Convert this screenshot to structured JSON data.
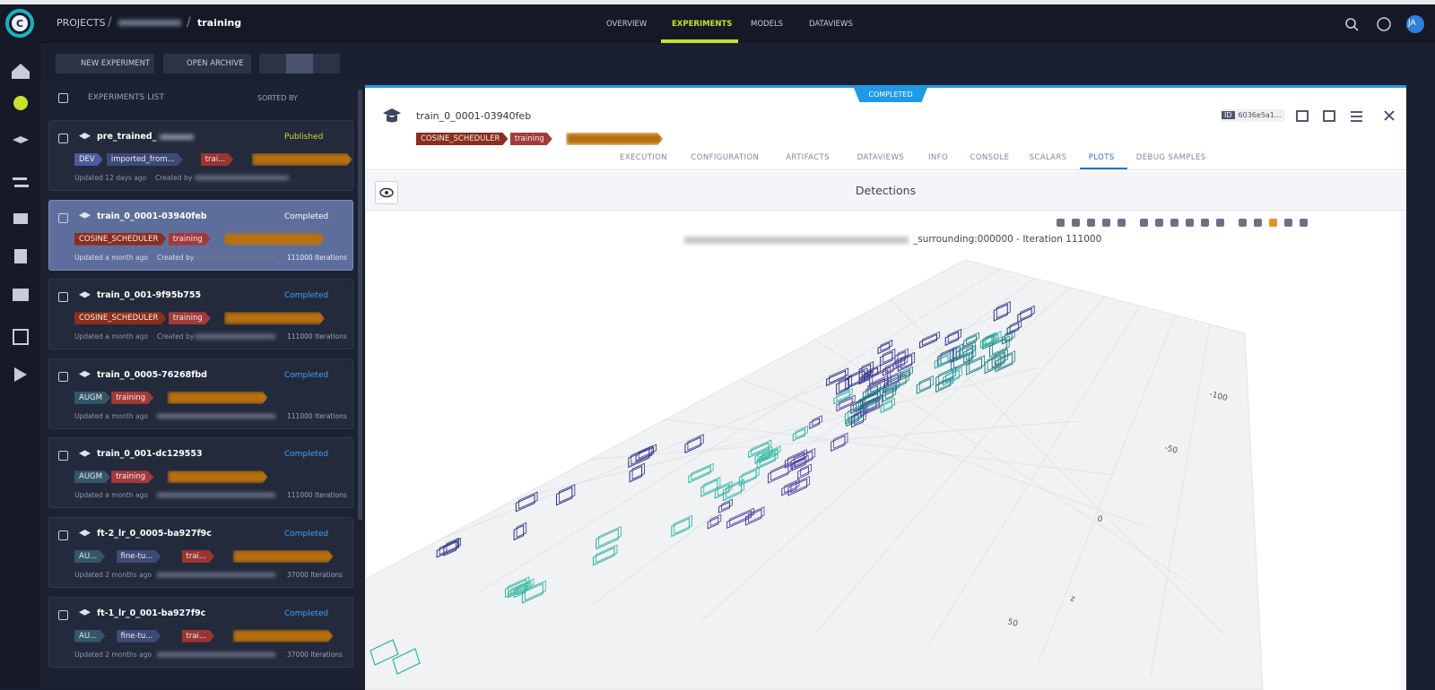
{
  "header": {
    "projects": "PROJECTS",
    "separator": "/",
    "project": "training",
    "tabs": [
      "OVERVIEW",
      "EXPERIMENTS",
      "MODELS",
      "DATAVIEWS"
    ],
    "active_tab": 1,
    "avatar": "JA"
  },
  "toolbar": {
    "new_experiment": "NEW EXPERIMENT",
    "open_archive": "OPEN ARCHIVE"
  },
  "list": {
    "title": "EXPERIMENTS LIST",
    "sorted_by": "SORTED BY",
    "selected_index": 1,
    "items": [
      {
        "name": "pre_trained_",
        "tags": [
          {
            "text": "DEV",
            "color": "#4b5a9c"
          },
          {
            "text": "imported_from...",
            "color": "#3d4a75"
          },
          {
            "text": "trai...",
            "color": "#9c3434"
          }
        ],
        "status": "Published",
        "updated": "Updated 12 days ago",
        "created_by": "Created by"
      },
      {
        "name": "train_0_0001-03940feb",
        "tags": [
          {
            "text": "COSINE_SCHEDULER",
            "color": "#8a2e1e"
          },
          {
            "text": "training",
            "color": "#a33a3a"
          }
        ],
        "status": "Completed",
        "updated": "Updated a month ago",
        "created_by": "Created by",
        "iterations": "111000 Iterations"
      },
      {
        "name": "train_0_001-9f95b755",
        "tags": [
          {
            "text": "COSINE_SCHEDULER",
            "color": "#8a2e1e"
          },
          {
            "text": "training",
            "color": "#a33a3a"
          }
        ],
        "status": "Completed",
        "updated": "Updated a month ago",
        "created_by": "Created by",
        "iterations": "111000 Iterations"
      },
      {
        "name": "train_0_0005-76268fbd",
        "tags": [
          {
            "text": "AUGM",
            "color": "#34566a"
          },
          {
            "text": "training",
            "color": "#a33a3a"
          }
        ],
        "status": "Completed",
        "updated": "Updated a month ago",
        "iterations": "111000 Iterations"
      },
      {
        "name": "train_0_001-dc129553",
        "tags": [
          {
            "text": "AUGM",
            "color": "#34566a"
          },
          {
            "text": "training",
            "color": "#a33a3a"
          }
        ],
        "status": "Completed",
        "updated": "Updated a month ago",
        "iterations": "111000 Iterations"
      },
      {
        "name": "ft-2_lr_0_0005-ba927f9c",
        "tags": [
          {
            "text": "AU...",
            "color": "#34566a"
          },
          {
            "text": "fine-tu...",
            "color": "#3d4a75"
          },
          {
            "text": "trai...",
            "color": "#9c3434"
          }
        ],
        "status": "Completed",
        "updated": "Updated 2 months ago",
        "iterations": "37000 Iterations"
      },
      {
        "name": "ft-1_lr_0_001-ba927f9c",
        "tags": [
          {
            "text": "AU...",
            "color": "#34566a"
          },
          {
            "text": "fine-tu...",
            "color": "#3d4a75"
          },
          {
            "text": "trai...",
            "color": "#9c3434"
          }
        ],
        "status": "Completed",
        "updated": "Updated 2 months ago",
        "iterations": "37000 Iterations"
      }
    ]
  },
  "details": {
    "status_banner": "COMPLETED",
    "name": "train_0_0001-03940feb",
    "tags": [
      {
        "text": "COSINE_SCHEDULER",
        "color": "#8a2e1e"
      },
      {
        "text": "training",
        "color": "#a33a3a"
      }
    ],
    "id_label": "ID",
    "id": "6036e5a1...",
    "tabs": [
      "EXECUTION",
      "CONFIGURATION",
      "ARTIFACTS",
      "DATAVIEWS",
      "INFO",
      "CONSOLE",
      "SCALARS",
      "PLOTS",
      "DEBUG SAMPLES"
    ],
    "active_tab": 7,
    "plot_title": "Detections",
    "plot_subtitle": "_surrounding:000000 - Iteration 111000",
    "axis_labels": [
      "-100",
      "-50",
      "0",
      "z",
      "50"
    ]
  }
}
